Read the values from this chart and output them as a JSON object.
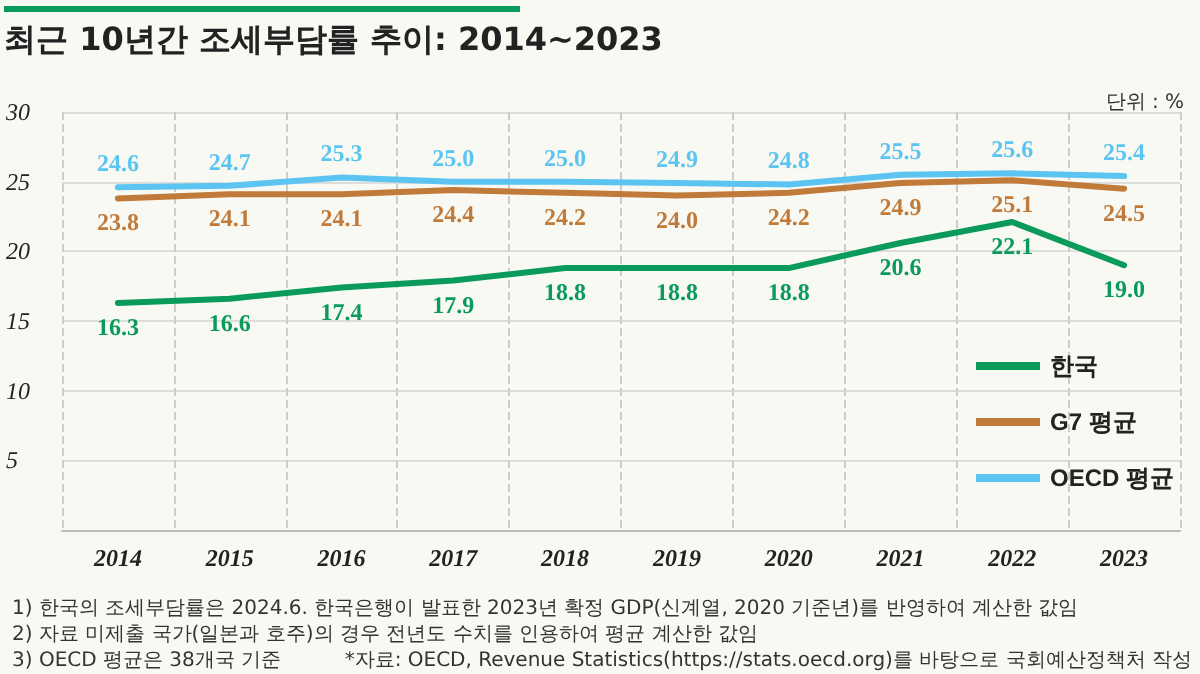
{
  "chart_data": {
    "type": "line",
    "title": "최근 10년간 조세부담률 추이: 2014~2023",
    "categories": [
      "2014",
      "2015",
      "2016",
      "2017",
      "2018",
      "2019",
      "2020",
      "2021",
      "2022",
      "2023"
    ],
    "series": [
      {
        "name": "한국",
        "color": "#0a9a5c",
        "values": [
          16.3,
          16.6,
          17.4,
          17.9,
          18.8,
          18.8,
          18.8,
          20.6,
          22.1,
          19.0
        ],
        "value_labels": [
          "16.3",
          "16.6",
          "17.4",
          "17.9",
          "18.8",
          "18.8",
          "18.8",
          "20.6",
          "22.1",
          "19.0"
        ]
      },
      {
        "name": "G7 평균",
        "color": "#c07a3a",
        "values": [
          23.8,
          24.1,
          24.1,
          24.4,
          24.2,
          24.0,
          24.2,
          24.9,
          25.1,
          24.5
        ],
        "value_labels": [
          "23.8",
          "24.1",
          "24.1",
          "24.4",
          "24.2",
          "24.0",
          "24.2",
          "24.9",
          "25.1",
          "24.5"
        ]
      },
      {
        "name": "OECD 평균",
        "color": "#5bc4f0",
        "values": [
          24.6,
          24.7,
          25.3,
          25.0,
          25.0,
          24.9,
          24.8,
          25.5,
          25.6,
          25.4
        ],
        "value_labels": [
          "24.6",
          "24.7",
          "25.3",
          "25.0",
          "25.0",
          "24.9",
          "24.8",
          "25.5",
          "25.6",
          "25.4"
        ]
      }
    ],
    "ylim": [
      0,
      30
    ],
    "yticks": [
      {
        "value": 0,
        "label": null
      },
      5,
      10,
      15,
      20,
      25,
      30
    ],
    "grid": true,
    "legend": "right",
    "marker": "none",
    "line_style": "solid",
    "annotations": [
      "단위 : %",
      "1) 한국의 조세부담률은 2024.6. 한국은행이 발표한 2023년 확정 GDP(신계열, 2020 기준년)를 반영하여 계산한 값임",
      "2) 자료 미제출 국가(일본과 호주)의 경우 전년도 수치를 인용하여 평균 계산한 값임",
      "3) OECD 평균은 38개국 기준",
      "*자료: OECD, Revenue Statistics(https://stats.oecd.org)를 바탕으로 국회예산정책처 작성"
    ]
  }
}
